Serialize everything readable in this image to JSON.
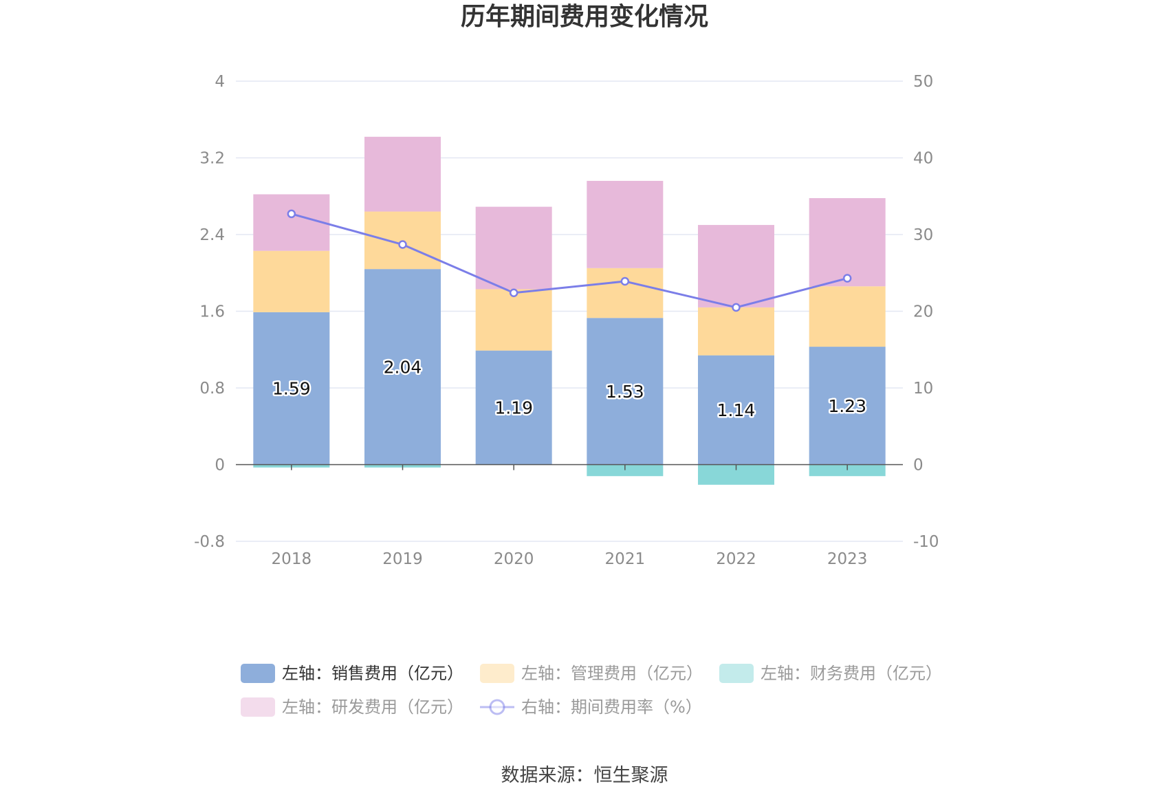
{
  "title": "历年期间费用变化情况",
  "source": "数据来源：恒生聚源",
  "colors": {
    "sales": "#8eaedb",
    "mgmt": "#fed99a",
    "finance": "#88d7d8",
    "rd": "#e7b9da",
    "rate": "#7b7ee8"
  },
  "legend": [
    {
      "key": "sales",
      "label": "左轴：销售费用（亿元）",
      "type": "bar",
      "active": true
    },
    {
      "key": "mgmt",
      "label": "左轴：管理费用（亿元）",
      "type": "bar",
      "active": false
    },
    {
      "key": "finance",
      "label": "左轴：财务费用（亿元）",
      "type": "bar",
      "active": false
    },
    {
      "key": "rd",
      "label": "左轴：研发费用（亿元）",
      "type": "bar",
      "active": false
    },
    {
      "key": "rate",
      "label": "右轴：期间费用率（%）",
      "type": "line",
      "active": false
    }
  ],
  "chart_data": {
    "type": "bar",
    "stacked": true,
    "categories": [
      "2018",
      "2019",
      "2020",
      "2021",
      "2022",
      "2023"
    ],
    "y_left": {
      "min": -0.8,
      "max": 4,
      "ticks": [
        "-0.8",
        "0",
        "0.8",
        "1.6",
        "2.4",
        "3.2",
        "4"
      ]
    },
    "y_right": {
      "min": -10,
      "max": 50,
      "ticks": [
        "-10",
        "0",
        "10",
        "20",
        "30",
        "40",
        "50"
      ]
    },
    "grid": true,
    "series": [
      {
        "key": "sales",
        "name": "左轴：销售费用（亿元）",
        "axis": "left",
        "values": [
          1.59,
          2.04,
          1.19,
          1.53,
          1.14,
          1.23
        ],
        "labels": [
          "1.59",
          "2.04",
          "1.19",
          "1.53",
          "1.14",
          "1.23"
        ]
      },
      {
        "key": "mgmt",
        "name": "左轴：管理费用（亿元）",
        "axis": "left",
        "values": [
          0.64,
          0.6,
          0.64,
          0.52,
          0.5,
          0.63
        ]
      },
      {
        "key": "finance",
        "name": "左轴：财务费用（亿元）",
        "axis": "left",
        "values": [
          -0.03,
          -0.03,
          0.0,
          -0.12,
          -0.21,
          -0.12
        ]
      },
      {
        "key": "rd",
        "name": "左轴：研发费用（亿元）",
        "axis": "left",
        "values": [
          0.59,
          0.78,
          0.86,
          0.91,
          0.86,
          0.92
        ]
      },
      {
        "key": "rate",
        "name": "右轴：期间费用率（%）",
        "axis": "right",
        "type": "line",
        "values": [
          32.7,
          28.7,
          22.4,
          23.9,
          20.5,
          24.3
        ]
      }
    ]
  }
}
